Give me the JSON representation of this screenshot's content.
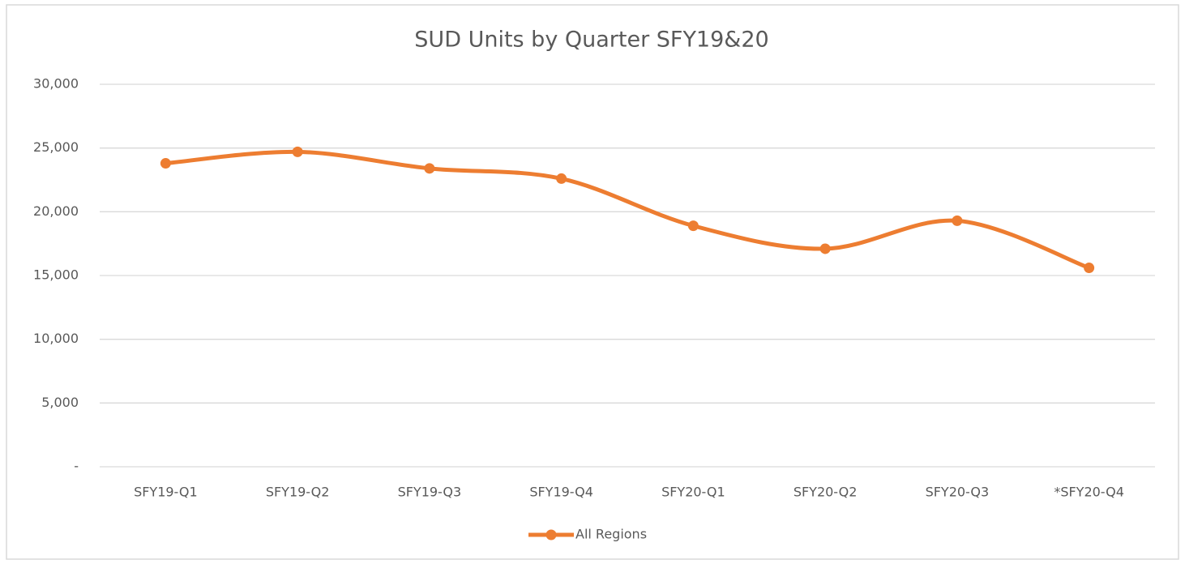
{
  "chart_data": {
    "type": "line",
    "title": "SUD Units by Quarter SFY19&20",
    "categories": [
      "SFY19-Q1",
      "SFY19-Q2",
      "SFY19-Q3",
      "SFY19-Q4",
      "SFY20-Q1",
      "SFY20-Q2",
      "SFY20-Q3",
      "*SFY20-Q4"
    ],
    "series": [
      {
        "name": "All Regions",
        "color": "#ed7d31",
        "values": [
          23800,
          24700,
          23400,
          22600,
          18900,
          17100,
          19300,
          15600
        ]
      }
    ],
    "ylim": [
      0,
      30000
    ],
    "yticks": [
      {
        "value": 0,
        "label": "-"
      },
      {
        "value": 5000,
        "label": "5,000"
      },
      {
        "value": 10000,
        "label": "10,000"
      },
      {
        "value": 15000,
        "label": "15,000"
      },
      {
        "value": 20000,
        "label": "20,000"
      },
      {
        "value": 25000,
        "label": "25,000"
      },
      {
        "value": 30000,
        "label": "30,000"
      }
    ],
    "grid": true,
    "smooth": true,
    "legend": "bottom"
  }
}
